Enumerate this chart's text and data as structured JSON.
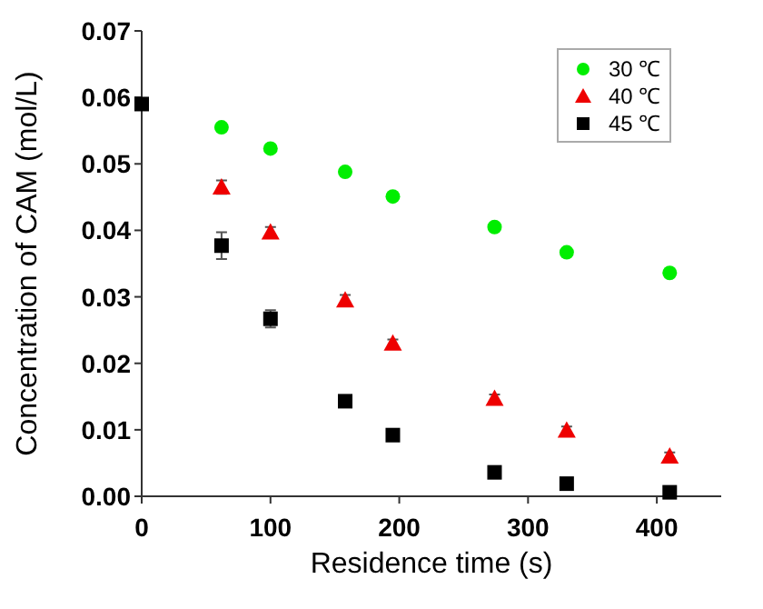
{
  "chart_data": {
    "type": "scatter",
    "xlabel": "Residence time (s)",
    "ylabel": "Concentration of CAM (mol/L)",
    "x": [
      0,
      62,
      100,
      158,
      195,
      274,
      330,
      410
    ],
    "series": [
      {
        "name": "30 ℃",
        "color": "#00ee00",
        "marker": "circle",
        "values": [
          null,
          0.0555,
          0.0523,
          0.0488,
          0.0451,
          0.0405,
          0.0367,
          0.0336
        ]
      },
      {
        "name": "40 ℃",
        "color": "#ee0000",
        "marker": "triangle",
        "values": [
          null,
          0.0465,
          0.0397,
          0.0295,
          0.023,
          0.0147,
          0.0099,
          0.006
        ],
        "errors": [
          null,
          0.001,
          0.0008,
          0.0008,
          0.0006,
          0.0006,
          0.0006,
          0.0006
        ]
      },
      {
        "name": "45 ℃",
        "color": "#000000",
        "marker": "square",
        "values": [
          0.059,
          0.0377,
          0.0267,
          0.0143,
          0.0092,
          0.0036,
          0.0019,
          0.0006
        ],
        "errors": [
          null,
          0.002,
          0.0013,
          null,
          null,
          null,
          null,
          null
        ]
      }
    ],
    "xlim": [
      0,
      450
    ],
    "xticks": [
      0,
      100,
      200,
      300,
      400
    ],
    "ylim": [
      0,
      0.07
    ],
    "yticks": [
      {
        "value": 0,
        "label": "0.00"
      },
      {
        "value": 0.01,
        "label": "0.01"
      },
      {
        "value": 0.02,
        "label": "0.02"
      },
      {
        "value": 0.03,
        "label": "0.03"
      },
      {
        "value": 0.04,
        "label": "0.04"
      },
      {
        "value": 0.05,
        "label": "0.05"
      },
      {
        "value": 0.06,
        "label": "0.06"
      },
      {
        "value": 0.07,
        "label": "0.07"
      }
    ],
    "legend": "top right",
    "grid": false
  }
}
